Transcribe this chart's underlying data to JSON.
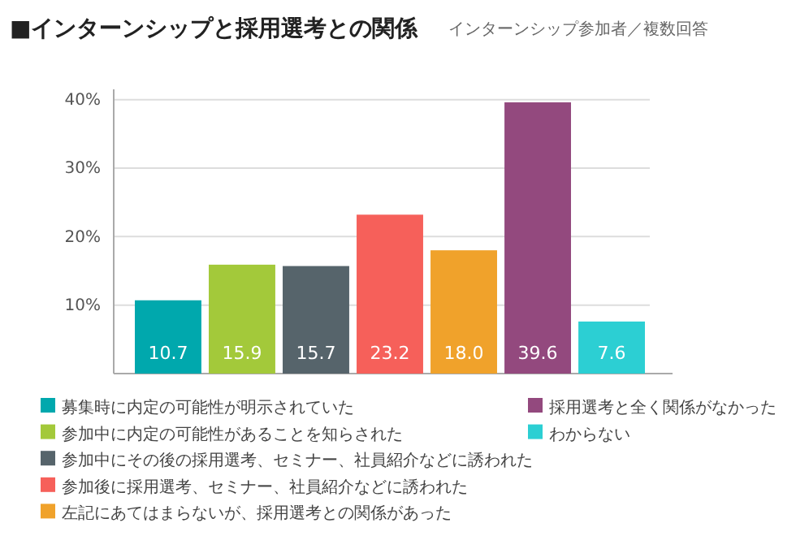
{
  "chart_data": {
    "type": "bar",
    "title": "■インターンシップと採用選考との関係",
    "subtitle": "インターンシップ参加者／複数回答",
    "categories": [
      null,
      null,
      null,
      null,
      null,
      null,
      null
    ],
    "series": [
      {
        "name": "募集時に内定の可能性が明示されていた",
        "color": "#00a8ad",
        "values": [
          10.7,
          null,
          null,
          null,
          null,
          null,
          null
        ],
        "value_labels": [
          "10.7",
          null,
          null,
          null,
          null,
          null,
          null
        ]
      },
      {
        "name": "参加中に内定の可能性があることを知らされた",
        "color": "#a3c93a",
        "values": [
          null,
          15.9,
          null,
          null,
          null,
          null,
          null
        ],
        "value_labels": [
          null,
          "15.9",
          null,
          null,
          null,
          null,
          null
        ]
      },
      {
        "name": "参加中にその後の採用選考、セミナー、社員紹介などに誘われた",
        "color": "#56646b",
        "values": [
          null,
          null,
          15.7,
          null,
          null,
          null,
          null
        ],
        "value_labels": [
          null,
          null,
          "15.7",
          null,
          null,
          null,
          null
        ]
      },
      {
        "name": "参加後に採用選考、セミナー、社員紹介などに誘われた",
        "color": "#f6605a",
        "values": [
          null,
          null,
          null,
          23.2,
          null,
          null,
          null
        ],
        "value_labels": [
          null,
          null,
          null,
          "23.2",
          null,
          null,
          null
        ]
      },
      {
        "name": "左記にあてはまらないが、採用選考との関係があった",
        "color": "#f0a22b",
        "values": [
          null,
          null,
          null,
          null,
          18.0,
          null,
          null
        ],
        "value_labels": [
          null,
          null,
          null,
          null,
          "18.0",
          null,
          null
        ]
      },
      {
        "name": "採用選考と全く関係がなかった",
        "color": "#93497e",
        "values": [
          null,
          null,
          null,
          null,
          null,
          39.6,
          null
        ],
        "value_labels": [
          null,
          null,
          null,
          null,
          null,
          "39.6",
          null
        ]
      },
      {
        "name": "わからない",
        "color": "#2ccfd3",
        "values": [
          null,
          null,
          null,
          null,
          null,
          null,
          7.6
        ],
        "value_labels": [
          null,
          null,
          null,
          null,
          null,
          null,
          "7.6"
        ]
      }
    ],
    "ylim": [
      0,
      41.5
    ],
    "yticks": [
      {
        "value": 10,
        "label": "10%"
      },
      {
        "value": 20,
        "label": "20%"
      },
      {
        "value": 30,
        "label": "30%"
      },
      {
        "value": 40,
        "label": "40%"
      }
    ],
    "grid": "y",
    "legend": "bottom",
    "tick_labels": "y"
  }
}
